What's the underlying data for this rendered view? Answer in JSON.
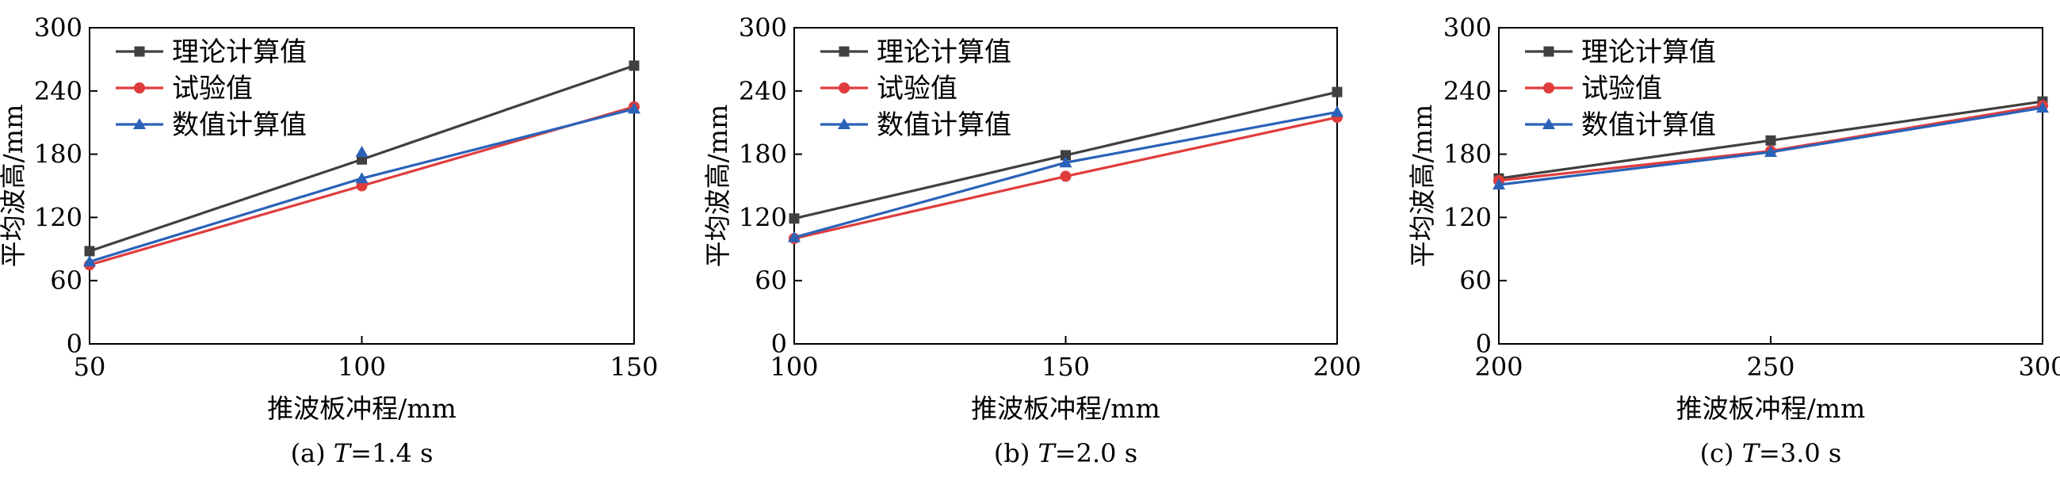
{
  "legend_labels": [
    "理论计算值",
    "试验值",
    "数值计算值"
  ],
  "series_colors": [
    "#404040",
    "#e03c3c",
    "#2a62b8"
  ],
  "series_markers": [
    "square",
    "circle",
    "triangle"
  ],
  "chart_data": [
    {
      "type": "line",
      "caption_prefix": "(a) ",
      "caption_var": "T",
      "caption_value": "=1.4 s",
      "xlabel": "推波板冲程/mm",
      "ylabel": "平均波高/mm",
      "x": [
        50,
        100,
        150
      ],
      "xlim": [
        50,
        150
      ],
      "ylim": [
        0,
        300
      ],
      "xticks": [
        50,
        100,
        150
      ],
      "yticks": [
        0,
        60,
        120,
        180,
        240,
        300
      ],
      "legend_position": "top-left",
      "grid": false,
      "series": [
        {
          "name": "理论计算值",
          "values": [
            88,
            175,
            264
          ]
        },
        {
          "name": "试验值",
          "values": [
            75,
            150,
            225
          ]
        },
        {
          "name": "数值计算值",
          "values": [
            78,
            157,
            223
          ]
        }
      ],
      "extra_marks": [
        {
          "series_index": 2,
          "x": 100,
          "y": 182
        }
      ]
    },
    {
      "type": "line",
      "caption_prefix": "(b) ",
      "caption_var": "T",
      "caption_value": "=2.0 s",
      "xlabel": "推波板冲程/mm",
      "ylabel": "平均波高/mm",
      "x": [
        100,
        150,
        200
      ],
      "xlim": [
        100,
        200
      ],
      "ylim": [
        0,
        300
      ],
      "xticks": [
        100,
        150,
        200
      ],
      "yticks": [
        0,
        60,
        120,
        180,
        240,
        300
      ],
      "legend_position": "top-left",
      "grid": false,
      "series": [
        {
          "name": "理论计算值",
          "values": [
            119,
            179,
            239
          ]
        },
        {
          "name": "试验值",
          "values": [
            100,
            159,
            215
          ]
        },
        {
          "name": "数值计算值",
          "values": [
            101,
            172,
            220
          ]
        }
      ],
      "extra_marks": []
    },
    {
      "type": "line",
      "caption_prefix": "(c) ",
      "caption_var": "T",
      "caption_value": "=3.0 s",
      "xlabel": "推波板冲程/mm",
      "ylabel": "平均波高/mm",
      "x": [
        200,
        250,
        300
      ],
      "xlim": [
        200,
        300
      ],
      "ylim": [
        0,
        300
      ],
      "xticks": [
        200,
        250,
        300
      ],
      "yticks": [
        0,
        60,
        120,
        180,
        240,
        300
      ],
      "legend_position": "top-left",
      "grid": false,
      "series": [
        {
          "name": "理论计算值",
          "values": [
            157,
            193,
            230
          ]
        },
        {
          "name": "试验值",
          "values": [
            155,
            183,
            226
          ]
        },
        {
          "name": "数值计算值",
          "values": [
            151,
            182,
            224
          ]
        }
      ],
      "extra_marks": []
    }
  ]
}
